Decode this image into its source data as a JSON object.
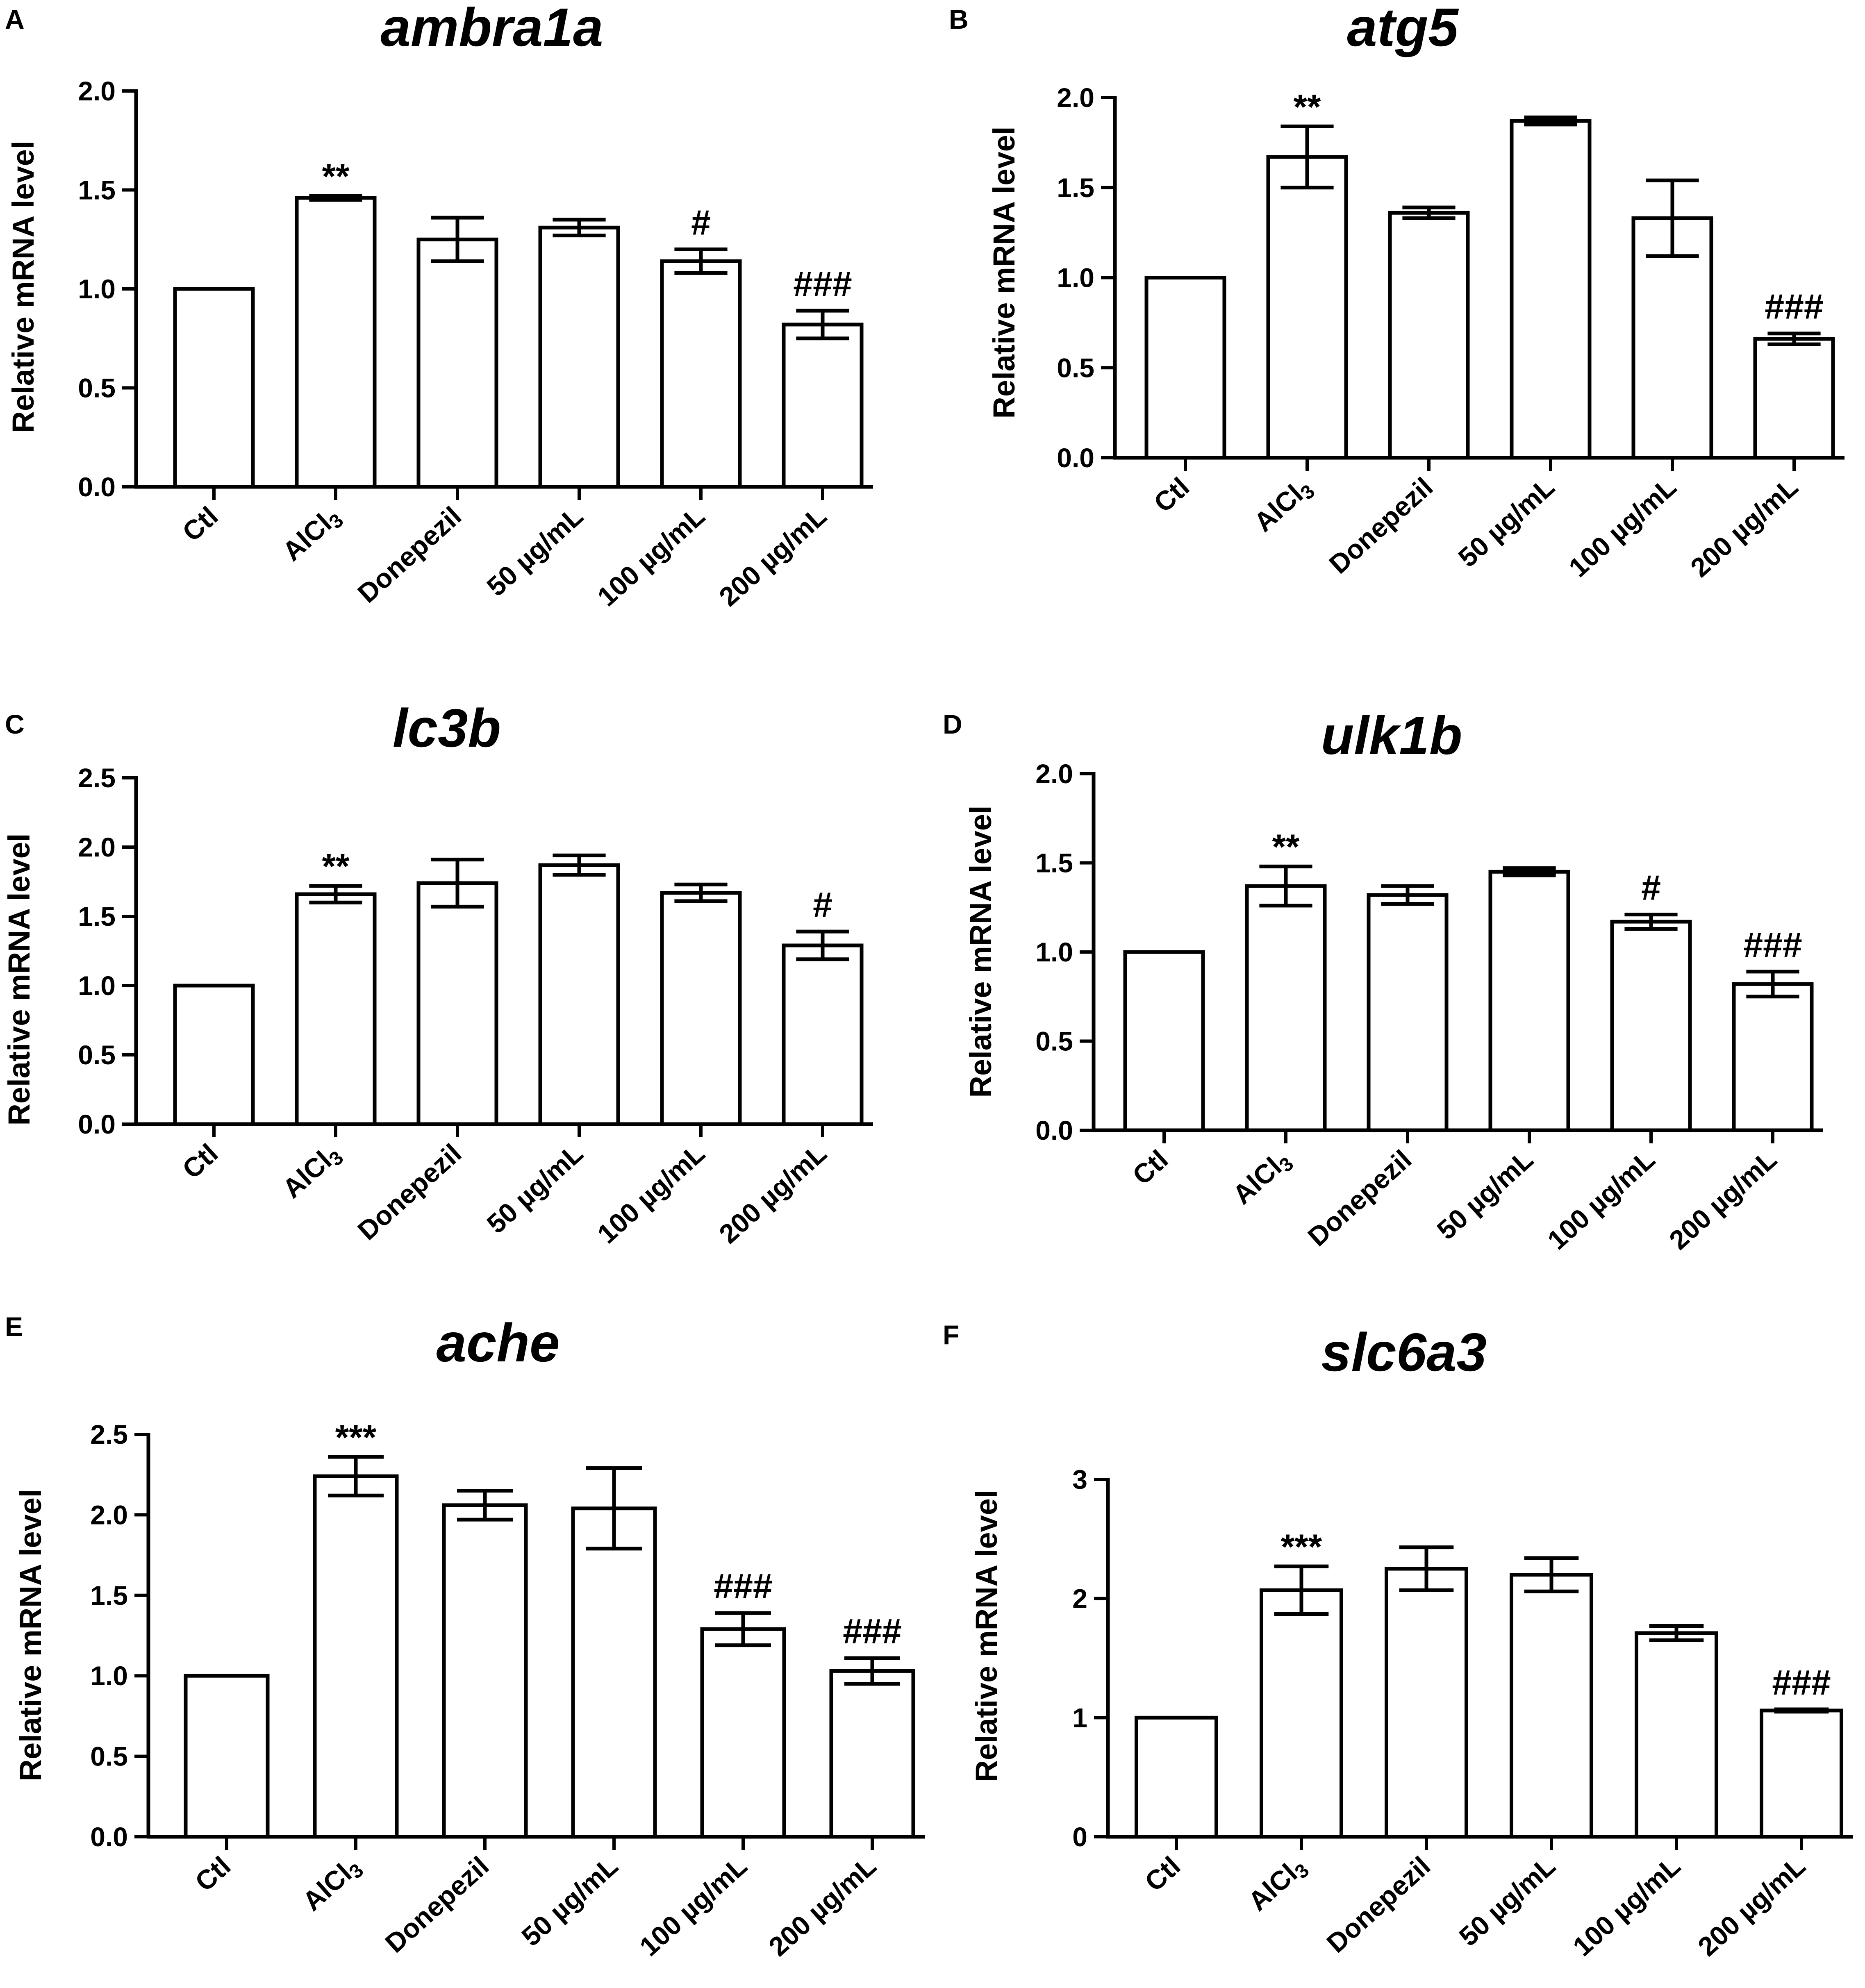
{
  "chart_data": [
    {
      "type": "bar",
      "panel": "A",
      "title": "ambra1a",
      "ylabel": "Relative mRNA level",
      "xlabel": "",
      "ylim": [
        0,
        2.0
      ],
      "yticks": [
        "0.0",
        "0.5",
        "1.0",
        "1.5",
        "2.0"
      ],
      "categories": [
        "Ctl",
        "AlCl3",
        "Donepezil",
        "50 µg/mL",
        "100 µg/mL",
        "200 µg/mL"
      ],
      "values": [
        1.0,
        1.46,
        1.25,
        1.31,
        1.14,
        0.82
      ],
      "errors": [
        0,
        0.01,
        0.11,
        0.04,
        0.06,
        0.07
      ],
      "annotations": [
        "",
        "**",
        "",
        "",
        "#",
        "###"
      ]
    },
    {
      "type": "bar",
      "panel": "B",
      "title": "atg5",
      "ylabel": "Relative mRNA level",
      "xlabel": "",
      "ylim": [
        0,
        2.0
      ],
      "yticks": [
        "0.0",
        "0.5",
        "1.0",
        "1.5",
        "2.0"
      ],
      "categories": [
        "Ctl",
        "AlCl3",
        "Donepezil",
        "50 µg/mL",
        "100 µg/mL",
        "200 µg/mL"
      ],
      "values": [
        1.0,
        1.67,
        1.36,
        1.87,
        1.33,
        0.66
      ],
      "errors": [
        0,
        0.17,
        0.03,
        0.02,
        0.21,
        0.03
      ],
      "annotations": [
        "",
        "**",
        "",
        "",
        "",
        "###"
      ]
    },
    {
      "type": "bar",
      "panel": "C",
      "title": "lc3b",
      "ylabel": "Relative mRNA level",
      "xlabel": "",
      "ylim": [
        0,
        2.5
      ],
      "yticks": [
        "0.0",
        "0.5",
        "1.0",
        "1.5",
        "2.0",
        "2.5"
      ],
      "categories": [
        "Ctl",
        "AlCl3",
        "Donepezil",
        "50 µg/mL",
        "100 µg/mL",
        "200 µg/mL"
      ],
      "values": [
        1.0,
        1.66,
        1.74,
        1.87,
        1.67,
        1.29
      ],
      "errors": [
        0,
        0.06,
        0.17,
        0.07,
        0.06,
        0.1
      ],
      "annotations": [
        "",
        "**",
        "",
        "",
        "",
        "#"
      ]
    },
    {
      "type": "bar",
      "panel": "D",
      "title": "ulk1b",
      "ylabel": "Relative mRNA level",
      "xlabel": "",
      "ylim": [
        0,
        2.0
      ],
      "yticks": [
        "0.0",
        "0.5",
        "1.0",
        "1.5",
        "2.0"
      ],
      "categories": [
        "Ctl",
        "AlCl3",
        "Donepezil",
        "50 µg/mL",
        "100 µg/mL",
        "200 µg/mL"
      ],
      "values": [
        1.0,
        1.37,
        1.32,
        1.45,
        1.17,
        0.82
      ],
      "errors": [
        0,
        0.11,
        0.05,
        0.02,
        0.04,
        0.07
      ],
      "annotations": [
        "",
        "**",
        "",
        "",
        "#",
        "###"
      ]
    },
    {
      "type": "bar",
      "panel": "E",
      "title": "ache",
      "ylabel": "Relative mRNA level",
      "xlabel": "",
      "ylim": [
        0,
        2.5
      ],
      "yticks": [
        "0.0",
        "0.5",
        "1.0",
        "1.5",
        "2.0",
        "2.5"
      ],
      "categories": [
        "Ctl",
        "AlCl3",
        "Donepezil",
        "50 µg/mL",
        "100 µg/mL",
        "200 µg/mL"
      ],
      "values": [
        1.0,
        2.24,
        2.06,
        2.04,
        1.29,
        1.03
      ],
      "errors": [
        0,
        0.12,
        0.09,
        0.25,
        0.1,
        0.08
      ],
      "annotations": [
        "",
        "***",
        "",
        "",
        "###",
        "###"
      ]
    },
    {
      "type": "bar",
      "panel": "F",
      "title": "slc6a3",
      "ylabel": "Relative mRNA level",
      "xlabel": "",
      "ylim": [
        0,
        3
      ],
      "yticks": [
        "0",
        "1",
        "2",
        "3"
      ],
      "categories": [
        "Ctl",
        "AlCl3",
        "Donepezil",
        "50 µg/mL",
        "100 µg/mL",
        "200 µg/mL"
      ],
      "values": [
        1.0,
        2.07,
        2.25,
        2.2,
        1.71,
        1.06
      ],
      "errors": [
        0,
        0.2,
        0.18,
        0.14,
        0.06,
        0.01
      ],
      "annotations": [
        "",
        "***",
        "",
        "",
        "",
        "###"
      ]
    }
  ]
}
